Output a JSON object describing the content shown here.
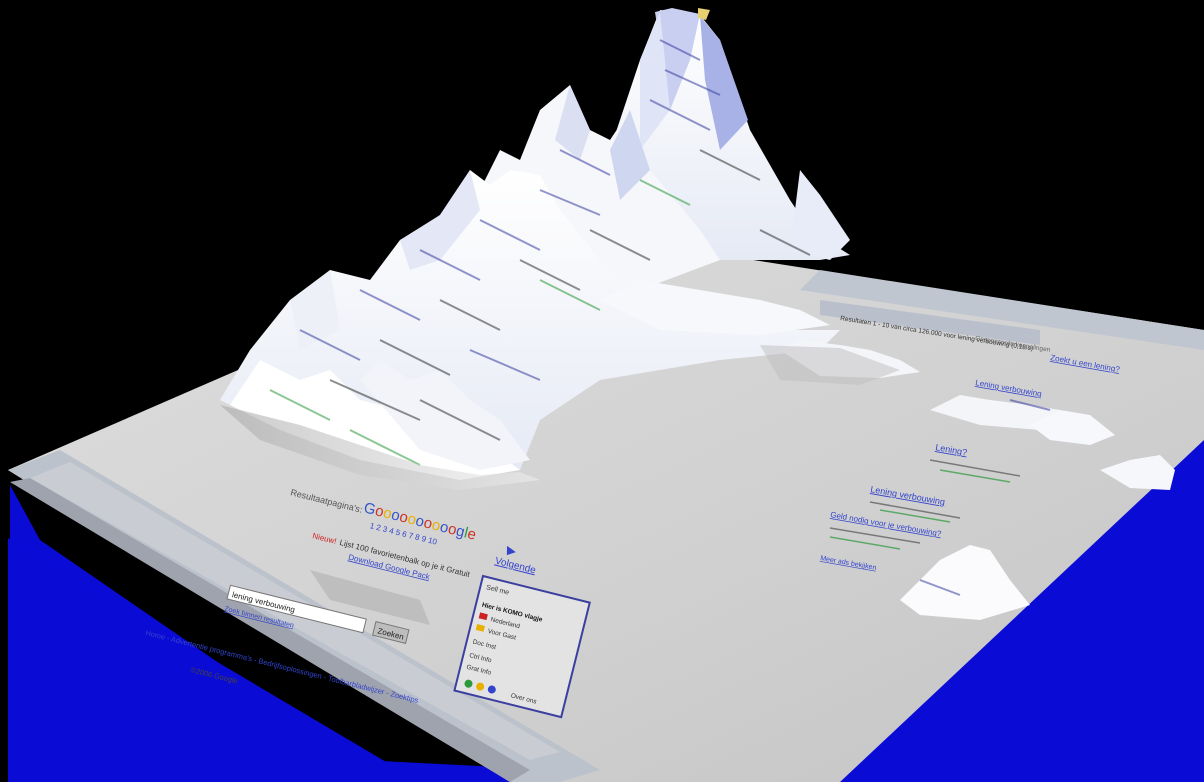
{
  "colors": {
    "background": "#000000",
    "page_surface": "#d2d2d2",
    "page_band": "#bcc2cc",
    "base_side": "#0b0bd6",
    "link_blue": "#3344cc",
    "green_text": "#2c9a3c",
    "red_text": "#cc2222",
    "dark_text": "#333333",
    "frame_border": "#3a3fa0"
  },
  "texts": {
    "result_pages_label": "Resultaatpagina's:",
    "google_logo_letters": [
      "G",
      "o",
      "o",
      "o",
      "o",
      "o",
      "o",
      "o",
      "o",
      "o",
      "o",
      "g",
      "l",
      "e"
    ],
    "page_numbers": "1 2 3 4 5 6 7 8 9 10",
    "next_link": "Volgende",
    "new_badge": "Nieuw!",
    "new_promo": "Lijst 100 favorietenbalk op je it Gratuit",
    "download_link": "Download Google Pack",
    "search_query": "lening verbouwing",
    "search_button": "Zoeken",
    "search_within_link": "Zoek binnen resultaten",
    "footer_links": "Home - Advertentie programma's - Bedrijfsoplossingen - Toolbarbladwijzer - Zoektips",
    "copyright": "©2006 Google",
    "stats_line": "Resultaten 1 - 10 van circa 126.000 voor lening verbouwing (0,16 s)",
    "sponsored_label": "Gesponsorde koppelingen",
    "ad_titles": [
      "Zoekt u een lening?",
      "Lening verbouwing",
      "Lening?",
      "Geld nodig voor je verbouwing?"
    ],
    "ad_more": "Meer ads bekijken"
  },
  "widget": {
    "title": "Sell me",
    "rows": [
      "Hier is KOMO vlagje",
      "Nederland",
      "Voor Gast",
      "Doc Inst",
      "Ctrl Info",
      "Grat Info"
    ],
    "bottom": "Over ons"
  }
}
